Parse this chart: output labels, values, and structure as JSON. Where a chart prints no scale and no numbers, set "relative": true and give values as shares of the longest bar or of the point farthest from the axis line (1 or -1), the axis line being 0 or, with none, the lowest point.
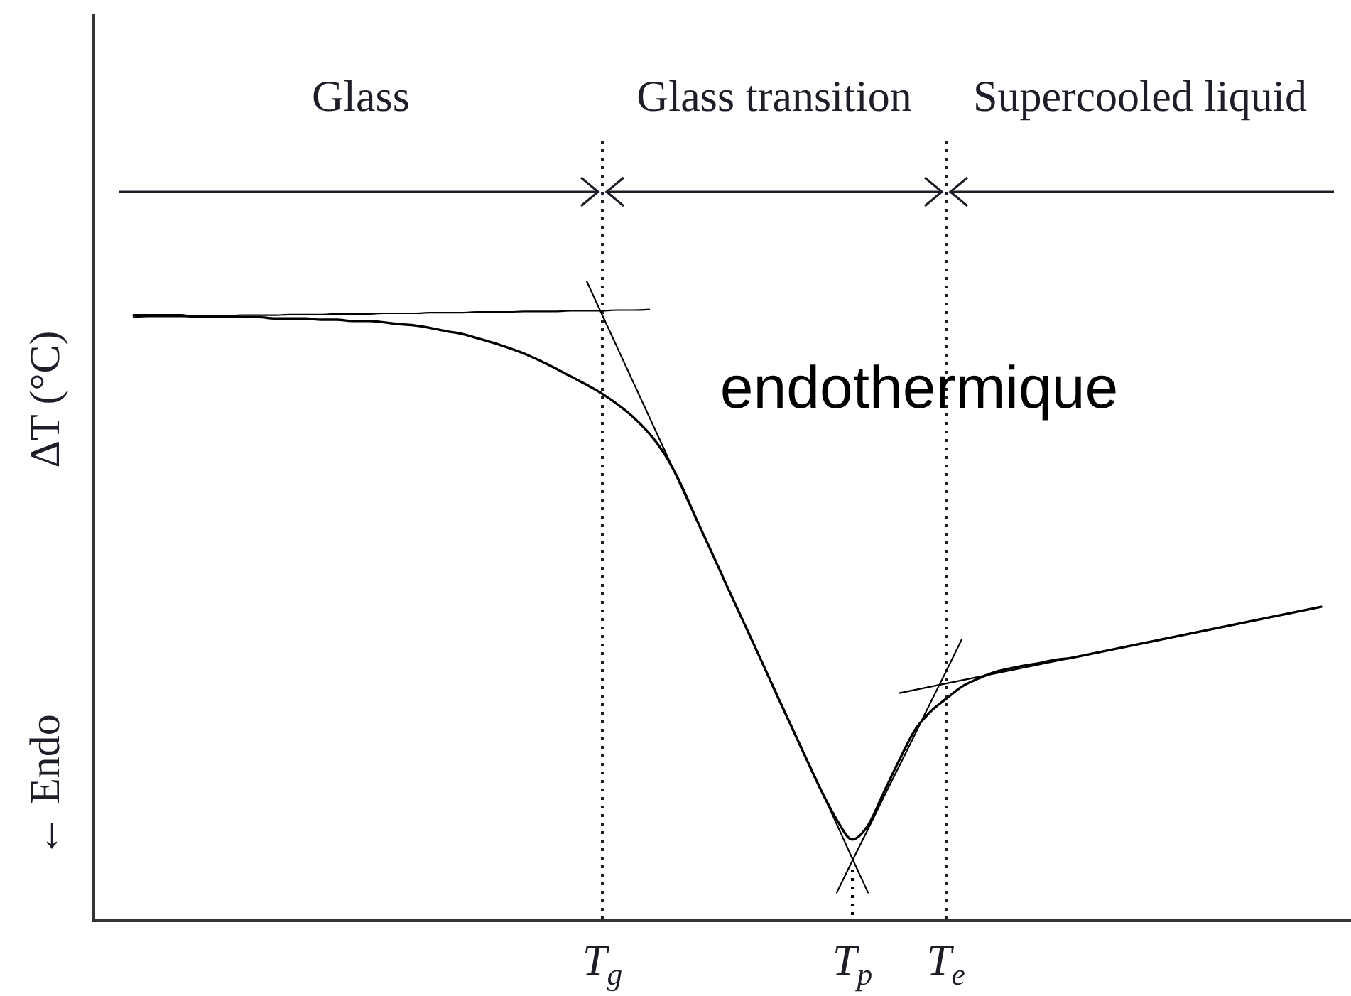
{
  "chart_data": {
    "type": "line",
    "relative": true,
    "ylabel": "ΔT (°C)",
    "categories": [
      null,
      null,
      null,
      null,
      null,
      null,
      null,
      null,
      null,
      null,
      null,
      null,
      null,
      null,
      null,
      null,
      null,
      null,
      null,
      null,
      null,
      null,
      null,
      null,
      null,
      null,
      null,
      null,
      null,
      null,
      "T$_{g}$",
      null,
      null,
      null,
      null,
      null,
      null,
      null,
      null,
      null,
      null,
      null,
      null,
      null,
      null,
      null,
      "T$_{p}$",
      null,
      null,
      null,
      null,
      null,
      "T$_{e}$",
      null,
      null,
      null,
      null,
      null,
      null,
      null,
      null,
      null,
      null,
      null,
      null,
      null,
      null,
      null,
      null,
      null,
      null,
      null,
      null,
      null,
      null,
      null,
      null
    ],
    "series": [
      {
        "color": "#000000",
        "values": [
          0.947,
          0.947,
          0.947,
          0.947,
          0.944,
          0.944,
          0.944,
          0.944,
          0.944,
          0.942,
          0.942,
          0.942,
          0.94,
          0.94,
          0.938,
          0.938,
          0.936,
          0.933,
          0.931,
          0.927,
          0.922,
          0.918,
          0.911,
          0.904,
          0.896,
          0.887,
          0.876,
          0.864,
          0.851,
          0.838,
          0.824,
          0.807,
          0.787,
          0.762,
          0.729,
          0.684,
          0.629,
          0.576,
          0.522,
          0.469,
          0.416,
          0.362,
          0.309,
          0.256,
          0.204,
          0.158,
          0.127,
          0.149,
          0.2,
          0.251,
          0.298,
          0.327,
          0.347,
          0.366,
          0.378,
          0.388,
          0.394,
          0.399,
          0.403,
          0.408,
          0.411,
          0.416,
          0.421,
          0.426,
          0.431,
          0.436,
          0.441,
          0.446,
          0.451,
          0.456,
          0.461,
          0.466,
          0.471,
          0.476,
          0.481,
          0.486,
          0.491
        ]
      },
      {
        "color": "#000000",
        "values": [
          0.944,
          0.945,
          0.945,
          0.945,
          0.946,
          0.946,
          0.946,
          0.947,
          0.947,
          0.947,
          0.948,
          0.948,
          0.948,
          0.949,
          0.949,
          0.949,
          0.95,
          0.95,
          0.95,
          0.951,
          0.951,
          0.951,
          0.952,
          0.952,
          0.952,
          0.953,
          0.953,
          0.953,
          0.954,
          0.954,
          0.954,
          0.955,
          0.955,
          0.956,
          null,
          null,
          null,
          null,
          null,
          null,
          null,
          null,
          null,
          null,
          null,
          null,
          null,
          null,
          null,
          null,
          null,
          null,
          null,
          null,
          null,
          null,
          null,
          null,
          null,
          null,
          null,
          null,
          null,
          null,
          null,
          null,
          null,
          null,
          null,
          null,
          null,
          null,
          null,
          null,
          null,
          null,
          null
        ]
      },
      {
        "color": "#000000",
        "values": [
          null,
          null,
          null,
          null,
          null,
          null,
          null,
          null,
          null,
          null,
          null,
          null,
          null,
          null,
          null,
          null,
          null,
          null,
          null,
          null,
          null,
          null,
          null,
          null,
          null,
          null,
          null,
          null,
          null,
          1.0,
          0.947,
          0.894,
          0.841,
          0.788,
          0.735,
          0.681,
          0.628,
          0.575,
          0.522,
          0.469,
          0.416,
          0.363,
          0.31,
          0.257,
          0.204,
          0.151,
          0.097,
          0.044,
          null,
          null,
          null,
          null,
          null,
          null,
          null,
          null,
          null,
          null,
          null,
          null,
          null,
          null,
          null,
          null,
          null,
          null,
          null,
          null,
          null,
          null,
          null,
          null,
          null,
          null,
          null,
          null,
          null
        ]
      },
      {
        "color": "#000000",
        "values": [
          null,
          null,
          null,
          null,
          null,
          null,
          null,
          null,
          null,
          null,
          null,
          null,
          null,
          null,
          null,
          null,
          null,
          null,
          null,
          null,
          null,
          null,
          null,
          null,
          null,
          null,
          null,
          null,
          null,
          null,
          null,
          null,
          null,
          null,
          null,
          null,
          null,
          null,
          null,
          null,
          null,
          null,
          null,
          null,
          null,
          0.044,
          0.094,
          0.143,
          0.193,
          0.242,
          0.291,
          0.341,
          0.39,
          0.44,
          null,
          null,
          null,
          null,
          null,
          null,
          null,
          null,
          null,
          null,
          null,
          null,
          null,
          null,
          null,
          null,
          null,
          null,
          null,
          null,
          null,
          null,
          null
        ]
      },
      {
        "color": "#000000",
        "values": [
          null,
          null,
          null,
          null,
          null,
          null,
          null,
          null,
          null,
          null,
          null,
          null,
          null,
          null,
          null,
          null,
          null,
          null,
          null,
          null,
          null,
          null,
          null,
          null,
          null,
          null,
          null,
          null,
          null,
          null,
          null,
          null,
          null,
          null,
          null,
          null,
          null,
          null,
          null,
          null,
          null,
          null,
          null,
          null,
          null,
          null,
          null,
          null,
          null,
          0.356,
          0.361,
          0.366,
          0.371,
          0.376,
          0.381,
          0.386,
          0.391,
          0.396,
          0.401,
          0.406,
          0.411,
          0.416,
          0.421,
          0.426,
          0.431,
          0.436,
          0.441,
          0.446,
          0.451,
          0.456,
          0.461,
          0.466,
          0.471,
          0.476,
          0.481,
          0.486,
          0.491
        ]
      },
      {
        "color": "#000000",
        "line_style": "dotted",
        "x": [
          "T$_{p}$",
          "T$_{p}$"
        ],
        "values": [
          0.08,
          0.0
        ]
      }
    ],
    "ref_lines": [
      {
        "axis": "x",
        "value": "T$_{g}$",
        "line_style": "dotted"
      },
      {
        "axis": "x",
        "value": "T$_{e}$",
        "line_style": "dotted"
      }
    ],
    "annotations": [
      "Glass",
      "Glass transition",
      "Supercooled liquid",
      "endothermique",
      "← Endo"
    ]
  }
}
